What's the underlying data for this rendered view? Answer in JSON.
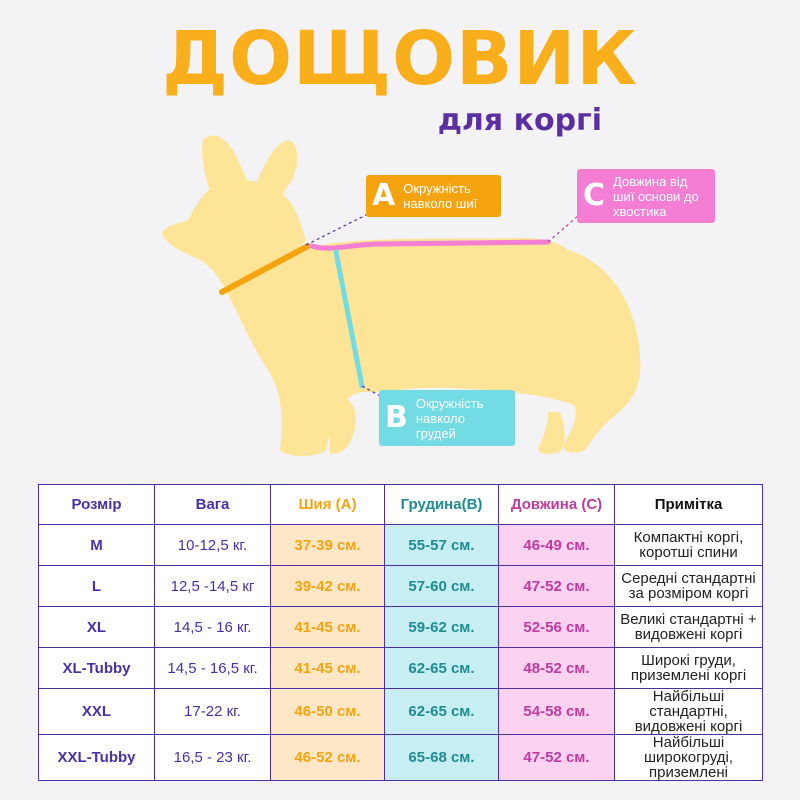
{
  "header": {
    "title": "ДОЩОВИК",
    "subtitle": "для коргі"
  },
  "callouts": {
    "a": {
      "letter": "A",
      "text": "Окружність навколо шиї"
    },
    "b": {
      "letter": "B",
      "text": "Окружність навколо грудей"
    },
    "c": {
      "letter": "C",
      "text": "Довжина від шиї основи до хвостика"
    }
  },
  "colors": {
    "title": "#f9ae1b",
    "subtitle": "#5b2fa1",
    "neck": "#f5a30e",
    "chest": "#73dbe3",
    "length": "#f57ed5",
    "dog": "#fde497",
    "table_border": "#4b2fa6"
  },
  "table": {
    "headers": [
      "Розмір",
      "Вага",
      "Шия (А)",
      "Грудина(В)",
      "Довжина (С)",
      "Примітка"
    ],
    "rows": [
      {
        "size": "M",
        "weight": "10-12,5 кг.",
        "neck": "37-39 см.",
        "chest": "55-57 см.",
        "length": "46-49 см.",
        "note": "Компактні коргі, коротші спини"
      },
      {
        "size": "L",
        "weight": "12,5 -14,5 кг",
        "neck": "39-42 см.",
        "chest": "57-60 см.",
        "length": "47-52 см.",
        "note": "Середні стандартні за розміром коргі"
      },
      {
        "size": "XL",
        "weight": "14,5 - 16 кг.",
        "neck": "41-45 см.",
        "chest": "59-62 см.",
        "length": "52-56 см.",
        "note": "Великі стандартні + видовжені коргі"
      },
      {
        "size": "XL-Tubby",
        "weight": "14,5 - 16,5 кг.",
        "neck": "41-45 см.",
        "chest": "62-65 см.",
        "length": "48-52 см.",
        "note": "Широкі груди, приземлені коргі"
      },
      {
        "size": "XXL",
        "weight": "17-22 кг.",
        "neck": "46-50 см.",
        "chest": "62-65 см.",
        "length": "54-58 см.",
        "note": "Найбільші стандартні, видовжені коргі"
      },
      {
        "size": "XXL-Tubby",
        "weight": "16,5 - 23 кг.",
        "neck": "46-52 см.",
        "chest": "65-68 см.",
        "length": "47-52 см.",
        "note": "Найбільші широкогруді, приземлені"
      }
    ]
  }
}
